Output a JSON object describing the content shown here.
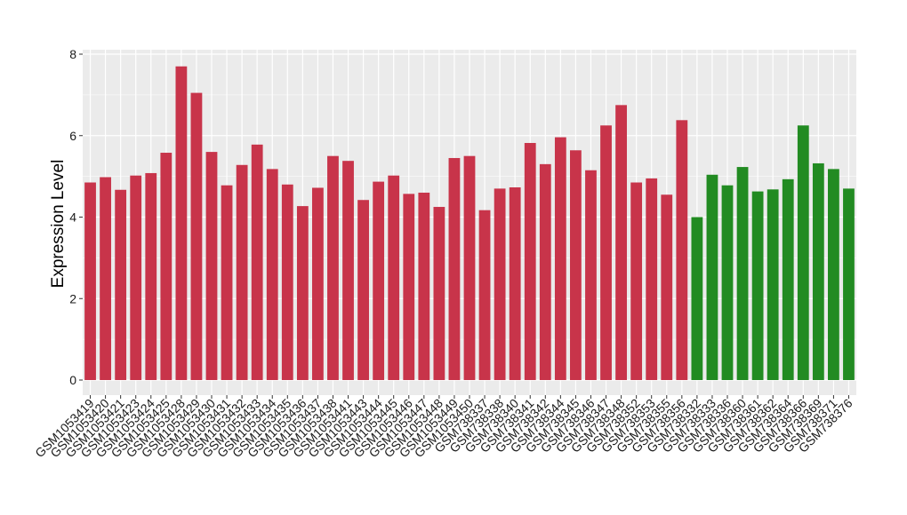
{
  "chart_data": {
    "type": "bar",
    "title": "",
    "xlabel": "",
    "ylabel": "Expression Level",
    "ylim": [
      0,
      8
    ],
    "yticks": [
      0,
      2,
      4,
      6,
      8
    ],
    "grid": true,
    "legend": "none",
    "panel_color": "#EBEBEB",
    "grid_color": "#FFFFFF",
    "series": [
      {
        "color": "#C8344A",
        "categories": [
          "GSM1053419",
          "GSM1053420",
          "GSM1053421",
          "GSM1053423",
          "GSM1053424",
          "GSM1053425",
          "GSM1053428",
          "GSM1053429",
          "GSM1053430",
          "GSM1053431",
          "GSM1053432",
          "GSM1053433",
          "GSM1053434",
          "GSM1053435",
          "GSM1053436",
          "GSM1053437",
          "GSM1053438",
          "GSM1053441",
          "GSM1053443",
          "GSM1053444",
          "GSM1053445",
          "GSM1053446",
          "GSM1053447",
          "GSM1053448",
          "GSM1053449",
          "GSM1053450",
          "GSM738337",
          "GSM738338",
          "GSM738340",
          "GSM738341",
          "GSM738342",
          "GSM738344",
          "GSM738345",
          "GSM738346",
          "GSM738347",
          "GSM738348",
          "GSM738352",
          "GSM738353",
          "GSM738355",
          "GSM738356"
        ],
        "values": [
          4.85,
          4.98,
          4.67,
          5.02,
          5.08,
          5.58,
          7.7,
          7.05,
          5.6,
          4.78,
          5.28,
          5.78,
          5.18,
          4.8,
          4.27,
          4.72,
          5.5,
          5.38,
          4.42,
          4.87,
          5.02,
          4.57,
          4.6,
          4.25,
          5.45,
          5.5,
          4.17,
          4.7,
          4.73,
          5.82,
          5.3,
          5.96,
          5.64,
          5.15,
          6.25,
          6.75,
          4.85,
          4.95,
          4.55,
          6.38
        ]
      },
      {
        "color": "#228B22",
        "categories": [
          "GSM738332",
          "GSM738333",
          "GSM738336",
          "GSM738360",
          "GSM738361",
          "GSM738362",
          "GSM738364",
          "GSM738366",
          "GSM738369",
          "GSM738371",
          "GSM738376"
        ],
        "values": [
          4.0,
          5.04,
          4.78,
          5.23,
          4.63,
          4.68,
          4.93,
          6.25,
          5.32,
          5.18,
          4.7
        ]
      }
    ]
  }
}
